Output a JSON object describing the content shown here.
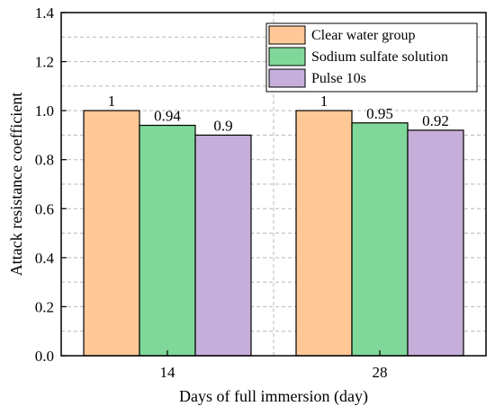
{
  "chart_data": {
    "type": "bar",
    "categories": [
      "14",
      "28"
    ],
    "series": [
      {
        "name": "Clear water group",
        "values": [
          1,
          1
        ],
        "labels": [
          "1",
          "1"
        ],
        "color": "#FFC896"
      },
      {
        "name": "Sodium sulfate solution",
        "values": [
          0.94,
          0.95
        ],
        "labels": [
          "0.94",
          "0.95"
        ],
        "color": "#7FD89A"
      },
      {
        "name": "Pulse 10s",
        "values": [
          0.9,
          0.92
        ],
        "labels": [
          "0.9",
          "0.92"
        ],
        "color": "#C6AEDA"
      }
    ],
    "yticks": [
      "0.0",
      "0.2",
      "0.4",
      "0.6",
      "0.8",
      "1.0",
      "1.2",
      "1.4"
    ],
    "xlabel": "Days of full immersion (day)",
    "ylabel": "Attack resistance coefficient",
    "ylim": [
      0,
      1.4
    ],
    "grid": true,
    "legend_position": "top-right"
  }
}
